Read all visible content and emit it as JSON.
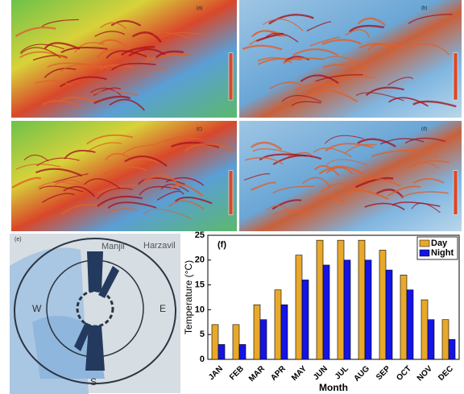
{
  "panels": [
    "(a)",
    "(b)",
    "(c)",
    "(d)"
  ],
  "wind_map": {
    "label": "(e)",
    "places": [
      "Manjil",
      "Harzavil"
    ],
    "directions": [
      "W",
      "E",
      "S"
    ]
  },
  "chart_data": {
    "type": "bar",
    "annotation": "(f)",
    "xlabel": "Month",
    "ylabel": "Temperature (°C)",
    "categories": [
      "JAN",
      "FEB",
      "MAR",
      "APR",
      "MAY",
      "JUN",
      "JUL",
      "AUG",
      "SEP",
      "OCT",
      "NOV",
      "DEC"
    ],
    "series": [
      {
        "name": "Day",
        "color": "#e8a82a",
        "values": [
          7,
          7,
          11,
          14,
          21,
          24,
          24,
          24,
          22,
          17,
          12,
          8
        ]
      },
      {
        "name": "Night",
        "color": "#1414e6",
        "values": [
          3,
          3,
          8,
          11,
          16,
          19,
          20,
          20,
          18,
          14,
          8,
          4
        ]
      }
    ],
    "ylim": [
      0,
      25
    ],
    "yticks": [
      0,
      5,
      10,
      15,
      20,
      25
    ],
    "legend": "upper right"
  }
}
